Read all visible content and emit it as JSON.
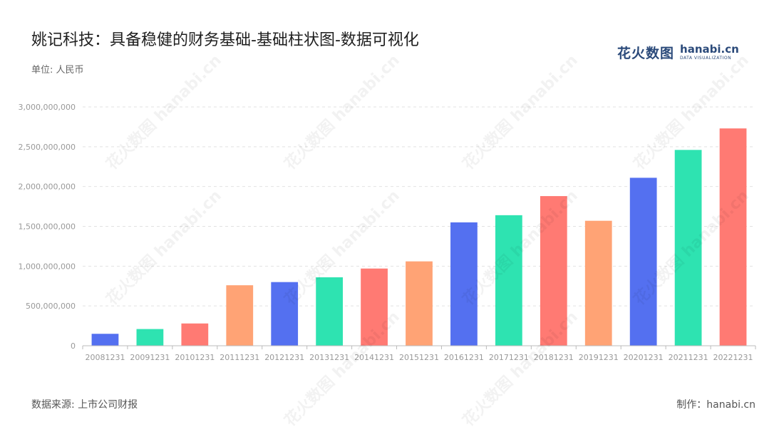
{
  "header": {
    "title": "姚记科技：具备稳健的财务基础-基础柱状图-数据可视化",
    "unit": "单位: 人民币"
  },
  "logo": {
    "cn": "花火数图",
    "en": "hanabi.cn",
    "en_sub": "DATA VISUALIZATION"
  },
  "footer": {
    "source": "数据来源: 上市公司财报",
    "credit": "制作：hanabi.cn"
  },
  "watermark_text": "花火数图 hanabi.cn",
  "colors": {
    "palette": [
      "#5470f0",
      "#2ee3b1",
      "#ff7a73",
      "#ffa375"
    ],
    "grid": "#e2e2e2",
    "axis": "#bbbbbb",
    "tick_text": "#999999"
  },
  "chart_data": {
    "type": "bar",
    "categories": [
      "20081231",
      "20091231",
      "20101231",
      "20111231",
      "20121231",
      "20131231",
      "20141231",
      "20151231",
      "20161231",
      "20171231",
      "20181231",
      "20191231",
      "20201231",
      "20211231",
      "20221231"
    ],
    "values": [
      150000000,
      210000000,
      280000000,
      760000000,
      800000000,
      860000000,
      970000000,
      1060000000,
      1550000000,
      1640000000,
      1880000000,
      1570000000,
      2110000000,
      2460000000,
      2730000000
    ],
    "ylim": [
      0,
      3000000000
    ],
    "yticks": [
      "0",
      "500,000,000",
      "1,000,000,000",
      "1,500,000,000",
      "2,000,000,000",
      "2,500,000,000",
      "3,000,000,000"
    ],
    "ytick_values": [
      0,
      500000000,
      1000000000,
      1500000000,
      2000000000,
      2500000000,
      3000000000
    ],
    "grid": true
  }
}
